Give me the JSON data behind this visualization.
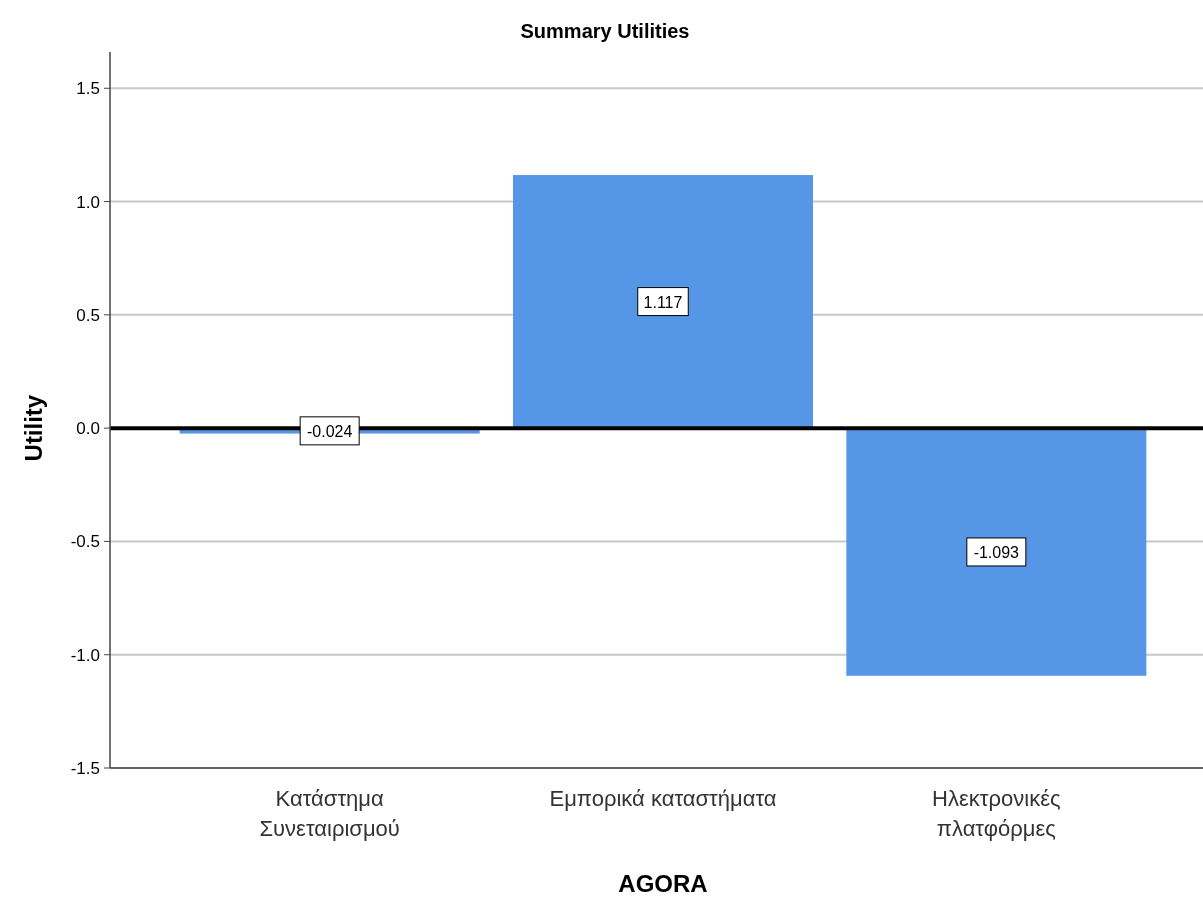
{
  "chart_data": {
    "type": "bar",
    "title": "Summary Utilities",
    "xlabel": "AGORA",
    "ylabel": "Utility",
    "categories": [
      "Κατάστημα Συνεταιρισμού",
      "Εμπορικά καταστήματα",
      "Ηλεκτρονικές πλατφόρμες"
    ],
    "values": [
      -0.024,
      1.117,
      -1.093
    ],
    "color": "#5596e6",
    "ylim": [
      -1.5,
      1.66
    ],
    "yticks": [
      {
        "value": -1.5,
        "label": "-1.5"
      },
      {
        "value": -1.0,
        "label": "-1.0"
      },
      {
        "value": -0.5,
        "label": "-0.5"
      },
      {
        "value": 0,
        "label": "0.0"
      },
      {
        "value": 0.5,
        "label": "0.5"
      },
      {
        "value": 1.0,
        "label": "1.0"
      },
      {
        "value": 1.5,
        "label": "1.5"
      }
    ],
    "grid": "y",
    "data_labels": true,
    "ref_lines": [
      {
        "axis": "y",
        "value": 0,
        "color": "#000000"
      }
    ]
  }
}
